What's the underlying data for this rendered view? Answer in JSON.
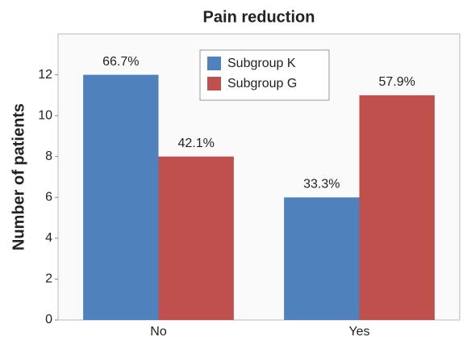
{
  "chart_data": {
    "type": "bar",
    "title": "Pain reduction",
    "y_label": "Number of patients",
    "categories": [
      "No",
      "Yes"
    ],
    "series": [
      {
        "name": "Subgroup K",
        "color": "#4f81bd",
        "values": [
          12,
          6
        ],
        "labels": [
          "66.7%",
          "33.3%"
        ]
      },
      {
        "name": "Subgroup G",
        "color": "#c0504d",
        "values": [
          8,
          11
        ],
        "labels": [
          "42.1%",
          "57.9%"
        ]
      }
    ],
    "ylim": [
      0,
      14
    ],
    "yticks": [
      0,
      2,
      4,
      6,
      8,
      10,
      12
    ],
    "grid": false,
    "legend": "upper center"
  }
}
